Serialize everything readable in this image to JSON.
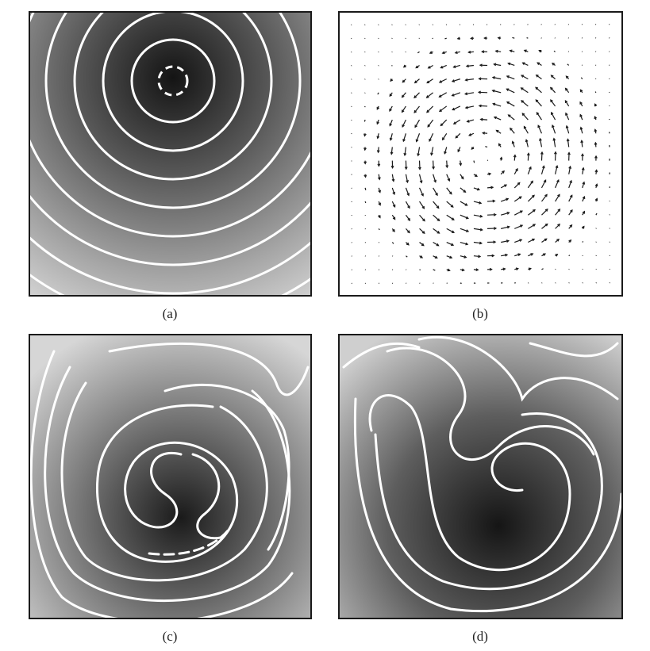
{
  "captions": {
    "a": "(a)",
    "b": "(b)",
    "c": "(c)",
    "d": "(d)"
  },
  "colors": {
    "contour": "#ffffff",
    "dark": "#141414",
    "light": "#e6e6e6",
    "arrow": "#1a1a1a"
  }
}
